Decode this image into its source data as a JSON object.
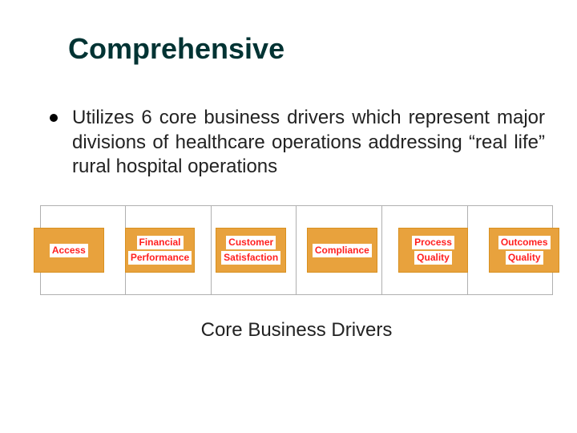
{
  "title": "Comprehensive",
  "bullet_text": "Utilizes 6 core business drivers which represent major divisions of healthcare operations addressing “real life” rural hospital operations",
  "caption": "Core Business Drivers",
  "colors": {
    "title_color": "#003333",
    "body_color": "#222222",
    "driver_bg": "#e8a23d",
    "driver_text": "#ff2020",
    "driver_text_bg": "#ffffff",
    "grid_line": "#b0b0b0"
  },
  "typography": {
    "title_fontsize": 36,
    "body_fontsize": 24,
    "caption_fontsize": 24,
    "driver_fontsize": 12,
    "title_weight": "bold",
    "driver_weight": "bold"
  },
  "diagram": {
    "type": "infographic",
    "columns": 6,
    "box_bg": "#e8a23d",
    "drivers": [
      {
        "lines": [
          "Access"
        ]
      },
      {
        "lines": [
          "Financial",
          "Performance"
        ]
      },
      {
        "lines": [
          "Customer",
          "Satisfaction"
        ]
      },
      {
        "lines": [
          "Compliance"
        ]
      },
      {
        "lines": [
          "Process",
          "Quality"
        ]
      },
      {
        "lines": [
          "Outcomes",
          "Quality"
        ]
      }
    ]
  }
}
